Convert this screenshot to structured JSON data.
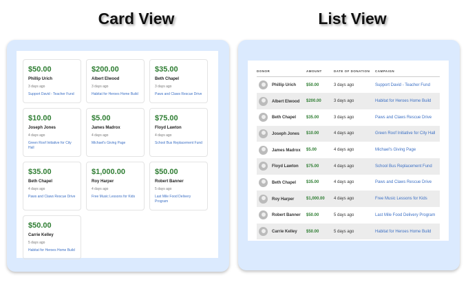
{
  "card_view": {
    "title": "Card View"
  },
  "list_view": {
    "title": "List View",
    "headers": [
      "DONOR",
      "AMOUNT",
      "DATE OF DONATION",
      "CAMPAIGN"
    ]
  },
  "donations": [
    {
      "donor": "Phillip Urich",
      "amount": "$50.00",
      "date": "3 days ago",
      "campaign": "Support David - Teacher Fund"
    },
    {
      "donor": "Albert Elwood",
      "amount": "$200.00",
      "date": "3 days ago",
      "campaign": "Habitat for Heroes Home Build"
    },
    {
      "donor": "Beth Chapel",
      "amount": "$35.00",
      "date": "3 days ago",
      "campaign": "Paws and Claws Rescue Drive"
    },
    {
      "donor": "Joseph Jones",
      "amount": "$10.00",
      "date": "4 days ago",
      "campaign": "Green Roof Initiative for City Hall"
    },
    {
      "donor": "James Madrox",
      "amount": "$5.00",
      "date": "4 days ago",
      "campaign": "Michael's Giving Page"
    },
    {
      "donor": "Floyd Lawton",
      "amount": "$75.00",
      "date": "4 days ago",
      "campaign": "School Bus Replacement Fund"
    },
    {
      "donor": "Beth Chapel",
      "amount": "$35.00",
      "date": "4 days ago",
      "campaign": "Paws and Claws Rescue Drive"
    },
    {
      "donor": "Roy Harper",
      "amount": "$1,000.00",
      "date": "4 days ago",
      "campaign": "Free Music Lessons for Kids"
    },
    {
      "donor": "Robert Banner",
      "amount": "$50.00",
      "date": "5 days ago",
      "campaign": "Last Mile Food Delivery Program"
    },
    {
      "donor": "Carrie Kelley",
      "amount": "$50.00",
      "date": "5 days ago",
      "campaign": "Habitat for Heroes Home Build"
    }
  ],
  "colors": {
    "amount": "#2e7d32",
    "link": "#3b6fc4",
    "panel": "#dbeafe"
  }
}
